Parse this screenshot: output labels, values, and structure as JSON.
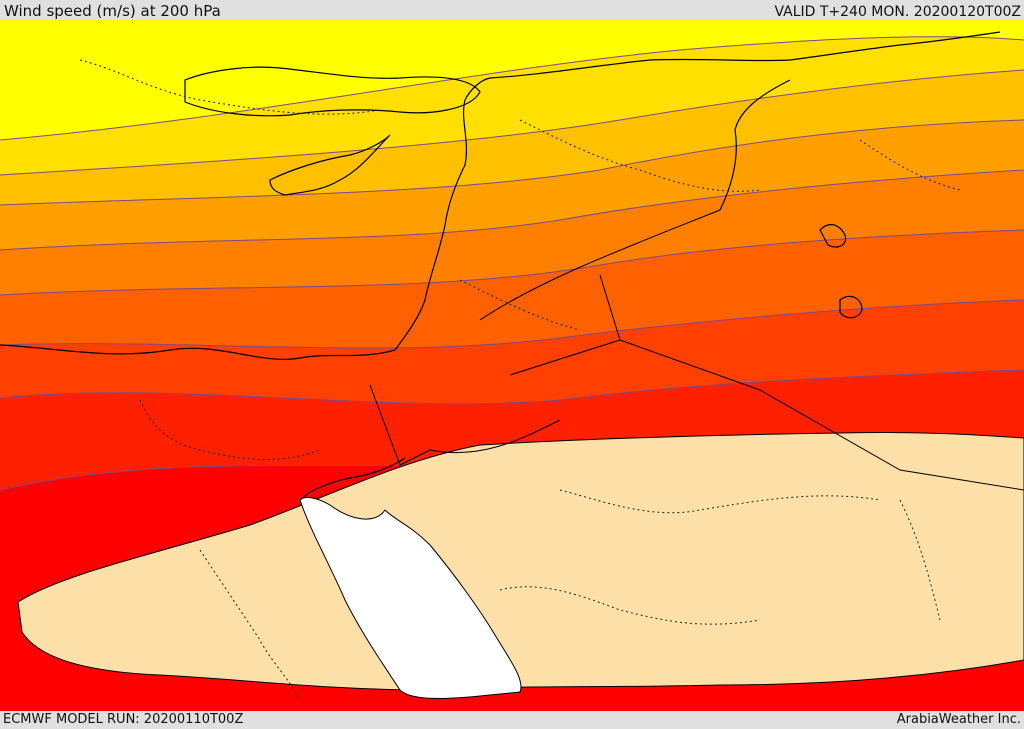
{
  "header": {
    "title": "Wind speed (m/s) at 200 hPa",
    "valid": "VALID T+240 MON. 20200120T00Z"
  },
  "footer": {
    "model_run": "ECMWF MODEL RUN: 20200110T00Z",
    "credit": "ArabiaWeather Inc."
  },
  "map": {
    "field": "wind speed at 200 hPa",
    "region": "Eastern Mediterranean / Middle East",
    "band_colors": [
      "#ffff00",
      "#ffe000",
      "#ffc000",
      "#ffa000",
      "#ff8000",
      "#ff6000",
      "#ff4000",
      "#ff2000",
      "#ff0000"
    ],
    "calm_color": "#fde0a8",
    "sea_color": "#ffffff",
    "coastline_color": "#000000",
    "border_style": "dotted"
  }
}
